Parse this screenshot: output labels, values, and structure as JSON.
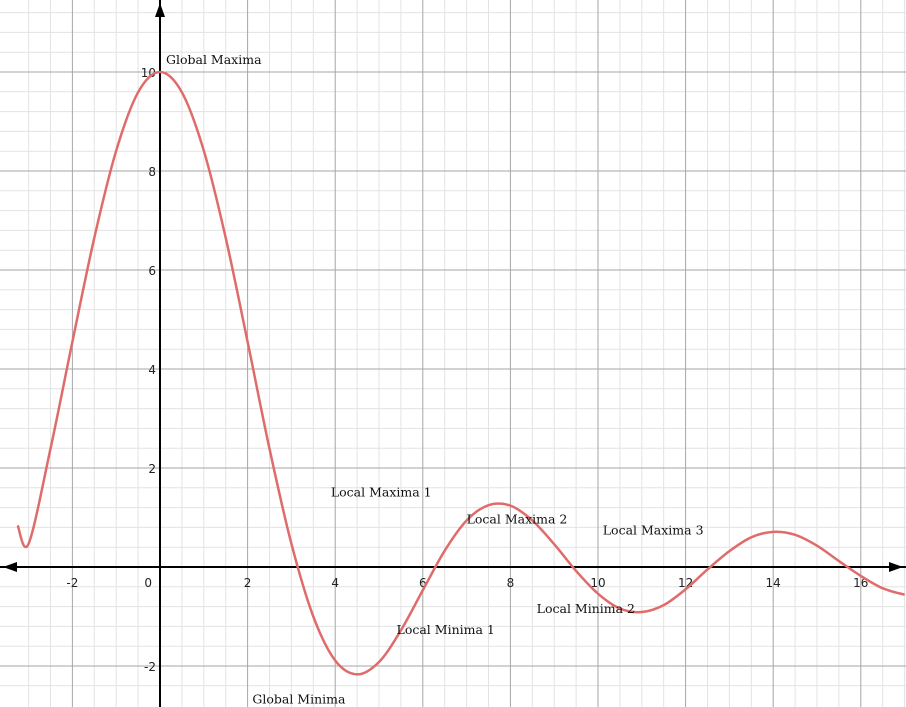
{
  "chart_data": {
    "type": "line",
    "function_form": "10*sin(x)/x",
    "xlim": [
      -3.25,
      17.0
    ],
    "ylim": [
      -2.7,
      11.4
    ],
    "x_ticks": [
      -2,
      0,
      2,
      4,
      6,
      8,
      10,
      12,
      14,
      16
    ],
    "y_ticks": [
      -2,
      2,
      4,
      6,
      8,
      10
    ],
    "grid": true,
    "axis_arrows": true,
    "colors": {
      "curve": "#e06b6b",
      "minor_grid": "#e3e3e3",
      "major_grid": "#a6a6a6",
      "axis": "#000000"
    },
    "series": [
      {
        "x": [
          -3.25,
          -3.0,
          -2.5,
          -2.0,
          -1.5,
          -1.0,
          -0.5,
          0.0,
          0.5,
          1.0,
          1.5,
          2.0,
          2.5,
          3.0,
          3.5,
          4.0,
          4.5,
          5.0,
          5.5,
          6.0,
          6.5,
          7.0,
          7.5,
          8.0,
          8.5,
          9.0,
          9.5,
          10.0,
          10.5,
          11.0,
          11.5,
          12.0,
          12.5,
          13.0,
          13.5,
          14.0,
          14.5,
          15.0,
          15.5,
          16.0,
          16.5,
          17.0
        ],
        "y": [
          0.84,
          0.47,
          2.39,
          4.55,
          6.65,
          8.41,
          9.59,
          10.0,
          9.59,
          8.41,
          6.65,
          4.55,
          2.39,
          0.47,
          -1.0,
          -1.89,
          -2.17,
          -1.92,
          -1.28,
          -0.47,
          0.33,
          0.94,
          1.25,
          1.24,
          0.94,
          0.46,
          -0.08,
          -0.54,
          -0.84,
          -0.91,
          -0.77,
          -0.45,
          -0.05,
          0.32,
          0.6,
          0.71,
          0.65,
          0.43,
          0.12,
          -0.18,
          -0.43,
          -0.56
        ]
      }
    ],
    "annotations": [
      {
        "text": "Global Maxima",
        "x": 0.0,
        "y": 10.0
      },
      {
        "text": "Global Minima",
        "x": 2.2,
        "y": -2.15
      },
      {
        "text": "Local Maxima 1",
        "x": 3.9,
        "y": 1.3
      },
      {
        "text": "Local Minima 1",
        "x": 5.4,
        "y": -0.85
      },
      {
        "text": "Local Maxima 2",
        "x": 7.0,
        "y": 0.72
      },
      {
        "text": "Local Minima 2",
        "x": 8.6,
        "y": -0.42
      },
      {
        "text": "Local Maxima 3",
        "x": 10.2,
        "y": 0.5
      }
    ],
    "zero_label": "0"
  }
}
